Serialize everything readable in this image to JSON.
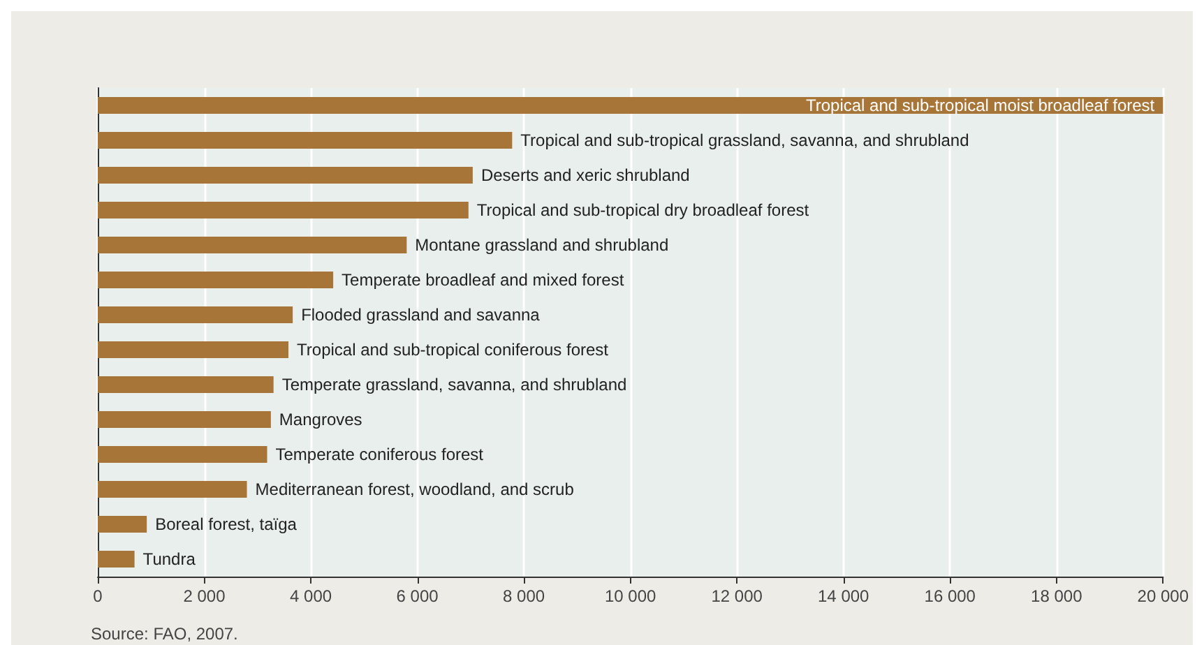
{
  "chart_data": {
    "type": "bar",
    "orientation": "horizontal",
    "color": "#a87538",
    "categories": [
      "Tropical and sub-tropical moist broadleaf forest",
      "Tropical and sub-tropical grassland, savanna, and shrubland",
      "Deserts and xeric shrubland",
      "Tropical and sub-tropical dry broadleaf forest",
      "Montane grassland and shrubland",
      "Temperate broadleaf and mixed forest",
      "Flooded grassland and savanna",
      "Tropical and sub-tropical coniferous forest",
      "Temperate grassland, savanna, and shrubland",
      "Mangroves",
      "Temperate coniferous forest",
      "Mediterranean forest, woodland, and scrub",
      "Boreal forest, taïga",
      "Tundra"
    ],
    "values": [
      20000,
      7780,
      7040,
      6960,
      5800,
      4420,
      3660,
      3580,
      3300,
      3250,
      3180,
      2800,
      920,
      690
    ],
    "xlim": [
      0,
      20000
    ],
    "xticks": [
      0,
      {
        "value": 2000,
        "label": "2 000"
      },
      {
        "value": 4000,
        "label": "4 000"
      },
      {
        "value": 6000,
        "label": "6 000"
      },
      {
        "value": 8000,
        "label": "8 000"
      },
      {
        "value": 10000,
        "label": "10 000"
      },
      {
        "value": 12000,
        "label": "12 000"
      },
      {
        "value": 14000,
        "label": "14 000"
      },
      {
        "value": 16000,
        "label": "16 000"
      },
      {
        "value": 18000,
        "label": "18 000"
      },
      {
        "value": 20000,
        "label": "20 000"
      }
    ],
    "grid": "x",
    "annotations": [
      "Source: FAO, 2007."
    ]
  }
}
